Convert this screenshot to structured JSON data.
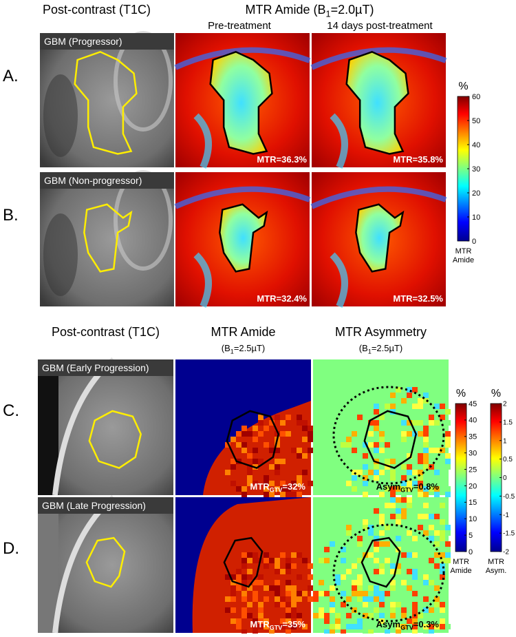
{
  "top": {
    "left_title": "Post-contrast (T1C)",
    "right_title": {
      "main": "MTR Amide (B",
      "sub": "1",
      "rest": "=2.0µT)"
    },
    "columns": [
      "Pre-treatment",
      "14 days post-treatment"
    ],
    "rows": [
      {
        "label": "A.",
        "tag": "GBM (Progressor)",
        "values": [
          "MTR=36.3%",
          "MTR=35.8%"
        ]
      },
      {
        "label": "B.",
        "tag": "GBM (Non-progressor)",
        "values": [
          "MTR=32.4%",
          "MTR=32.5%"
        ]
      }
    ],
    "colorbar": {
      "unit": "%",
      "ticks": [
        60,
        50,
        40,
        30,
        20,
        10,
        0
      ],
      "caption": [
        "MTR",
        "Amide"
      ]
    }
  },
  "bottom": {
    "columns": [
      {
        "title": "Post-contrast (T1C)"
      },
      {
        "title": "MTR Amide",
        "subtitle": {
          "main": "(B",
          "sub": "1",
          "rest": "=2.5µT)"
        }
      },
      {
        "title": "MTR Asymmetry",
        "subtitle": {
          "main": "(B",
          "sub": "1",
          "rest": "=2.5µT)"
        }
      }
    ],
    "rows": [
      {
        "label": "C.",
        "tag": "GBM (Early Progression)",
        "amide": {
          "main": "MTR",
          "sub": "GTV",
          "rest": "=32%"
        },
        "asym": {
          "main": "Asym",
          "sub": "GTV",
          "rest": "=0.8%"
        }
      },
      {
        "label": "D.",
        "tag": "GBM (Late Progression)",
        "amide": {
          "main": "MTR",
          "sub": "GTV",
          "rest": "=35%"
        },
        "asym": {
          "main": "Asym",
          "sub": "GTV",
          "rest": "=0.3%"
        }
      }
    ],
    "colorbars": [
      {
        "unit": "%",
        "ticks": [
          45,
          40,
          35,
          30,
          25,
          20,
          15,
          10,
          5,
          0
        ],
        "caption": [
          "MTR",
          "Amide"
        ]
      },
      {
        "unit": "%",
        "ticks": [
          2,
          1.5,
          1,
          0.5,
          0,
          -0.5,
          -1,
          -1.5,
          -2
        ],
        "caption": [
          "MTR",
          "Asym."
        ]
      }
    ]
  }
}
